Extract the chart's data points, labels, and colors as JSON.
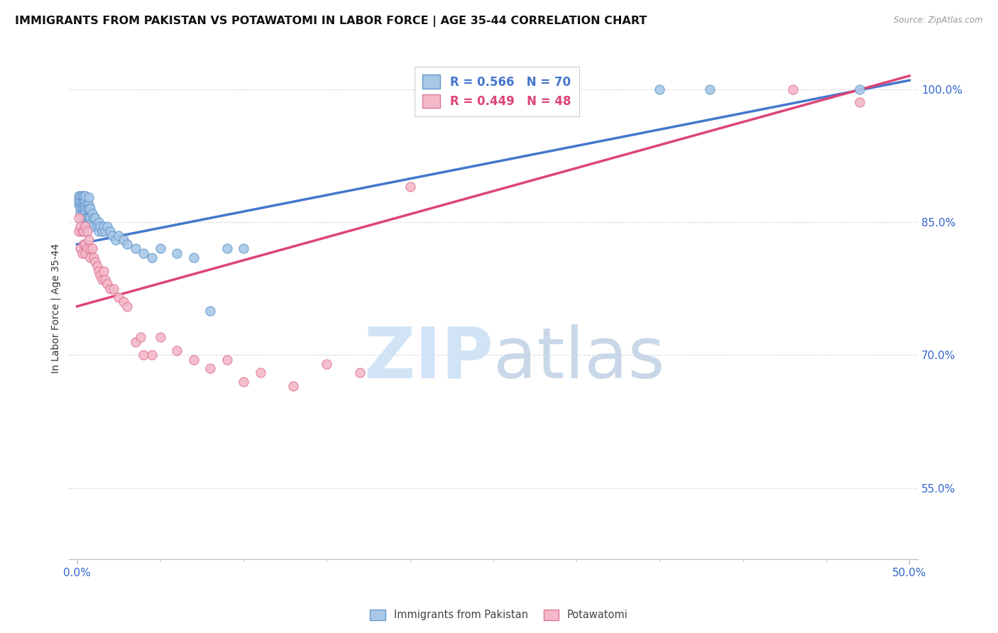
{
  "title": "IMMIGRANTS FROM PAKISTAN VS POTAWATOMI IN LABOR FORCE | AGE 35-44 CORRELATION CHART",
  "source": "Source: ZipAtlas.com",
  "ylabel": "In Labor Force | Age 35-44",
  "y_ticks": [
    0.55,
    0.7,
    0.85,
    1.0
  ],
  "y_tick_labels": [
    "55.0%",
    "70.0%",
    "85.0%",
    "100.0%"
  ],
  "ylim": [
    0.47,
    1.035
  ],
  "xlim": [
    -0.005,
    0.505
  ],
  "pakistan_color": "#a8c8e8",
  "pakistan_edge": "#6699cc",
  "potawatomi_color": "#f4b8c8",
  "potawatomi_edge": "#dd7799",
  "trend_pakistan_color": "#4477cc",
  "trend_potawatomi_color": "#dd4477",
  "watermark_zip": "ZIP",
  "watermark_atlas": "atlas",
  "watermark_color": "#ddeeff",
  "background_color": "#ffffff",
  "grid_color": "#dddddd",
  "title_fontsize": 11.5,
  "axis_label_fontsize": 10,
  "tick_fontsize": 11,
  "legend_fontsize": 12,
  "pk_legend_text": "R = 0.566   N = 70",
  "po_legend_text": "R = 0.449   N = 48",
  "pk_legend_color": "#4477cc",
  "po_legend_color": "#dd4477",
  "bottom_legend_pk": "Immigrants from Pakistan",
  "bottom_legend_po": "Potawatomi",
  "pakistan_x": [
    0.001,
    0.001,
    0.001,
    0.002,
    0.002,
    0.002,
    0.002,
    0.002,
    0.003,
    0.003,
    0.003,
    0.003,
    0.003,
    0.003,
    0.004,
    0.004,
    0.004,
    0.004,
    0.004,
    0.004,
    0.004,
    0.005,
    0.005,
    0.005,
    0.005,
    0.005,
    0.005,
    0.005,
    0.006,
    0.006,
    0.006,
    0.006,
    0.007,
    0.007,
    0.007,
    0.007,
    0.007,
    0.008,
    0.008,
    0.009,
    0.009,
    0.01,
    0.01,
    0.011,
    0.012,
    0.013,
    0.013,
    0.014,
    0.015,
    0.016,
    0.017,
    0.018,
    0.02,
    0.021,
    0.023,
    0.025,
    0.028,
    0.03,
    0.035,
    0.04,
    0.045,
    0.05,
    0.06,
    0.07,
    0.08,
    0.09,
    0.1,
    0.35,
    0.38,
    0.47
  ],
  "pakistan_y": [
    0.87,
    0.88,
    0.875,
    0.87,
    0.865,
    0.86,
    0.875,
    0.88,
    0.87,
    0.865,
    0.86,
    0.855,
    0.875,
    0.88,
    0.87,
    0.865,
    0.86,
    0.855,
    0.875,
    0.85,
    0.88,
    0.87,
    0.865,
    0.86,
    0.855,
    0.85,
    0.875,
    0.88,
    0.87,
    0.865,
    0.855,
    0.85,
    0.87,
    0.865,
    0.855,
    0.848,
    0.878,
    0.865,
    0.855,
    0.86,
    0.85,
    0.855,
    0.845,
    0.855,
    0.845,
    0.85,
    0.84,
    0.845,
    0.84,
    0.845,
    0.84,
    0.845,
    0.84,
    0.835,
    0.83,
    0.835,
    0.83,
    0.825,
    0.82,
    0.815,
    0.81,
    0.82,
    0.815,
    0.81,
    0.75,
    0.82,
    0.82,
    1.0,
    1.0,
    1.0
  ],
  "potawatomi_x": [
    0.001,
    0.001,
    0.002,
    0.002,
    0.003,
    0.003,
    0.004,
    0.004,
    0.005,
    0.005,
    0.005,
    0.006,
    0.006,
    0.007,
    0.008,
    0.008,
    0.009,
    0.01,
    0.011,
    0.012,
    0.013,
    0.014,
    0.015,
    0.016,
    0.017,
    0.018,
    0.02,
    0.022,
    0.025,
    0.028,
    0.03,
    0.035,
    0.038,
    0.04,
    0.045,
    0.05,
    0.06,
    0.07,
    0.08,
    0.09,
    0.1,
    0.11,
    0.13,
    0.15,
    0.17,
    0.2,
    0.43,
    0.47
  ],
  "potawatomi_y": [
    0.855,
    0.84,
    0.845,
    0.82,
    0.84,
    0.815,
    0.84,
    0.825,
    0.845,
    0.825,
    0.815,
    0.84,
    0.82,
    0.83,
    0.82,
    0.81,
    0.82,
    0.81,
    0.805,
    0.8,
    0.795,
    0.79,
    0.785,
    0.795,
    0.785,
    0.78,
    0.775,
    0.775,
    0.765,
    0.76,
    0.755,
    0.715,
    0.72,
    0.7,
    0.7,
    0.72,
    0.705,
    0.695,
    0.685,
    0.695,
    0.67,
    0.68,
    0.665,
    0.69,
    0.68,
    0.89,
    1.0,
    0.985
  ]
}
